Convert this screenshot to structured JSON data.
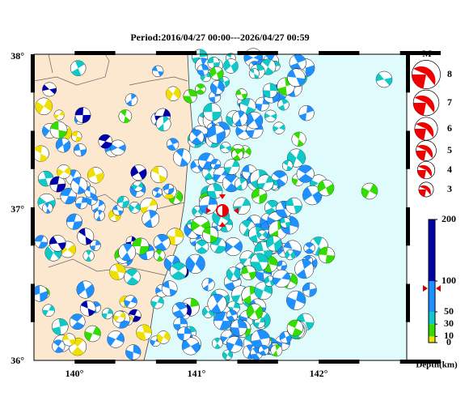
{
  "header": {
    "title": "Period:2016/04/27 00:00---2026/04/27 00:59"
  },
  "map": {
    "lat_labels": [
      "38°",
      "37°",
      "36°"
    ],
    "lon_labels": [
      "140°",
      "141°",
      "142°"
    ]
  },
  "magnitude_legend": {
    "title": "M",
    "magnitudes": [
      8,
      7,
      6,
      5,
      4,
      3
    ]
  },
  "depth_scale": {
    "label": "Depth(km)",
    "ylim": [
      0,
      200
    ],
    "yticks": [
      0,
      10,
      30,
      50,
      100,
      200
    ],
    "bands": [
      {
        "from": 0,
        "to": 10,
        "color": "#f0e000"
      },
      {
        "from": 10,
        "to": 30,
        "color": "#33dd00"
      },
      {
        "from": 30,
        "to": 50,
        "color": "#10c8c8"
      },
      {
        "from": 50,
        "to": 100,
        "color": "#1e90ff"
      },
      {
        "from": 100,
        "to": 200,
        "color": "#0000aa"
      }
    ]
  }
}
